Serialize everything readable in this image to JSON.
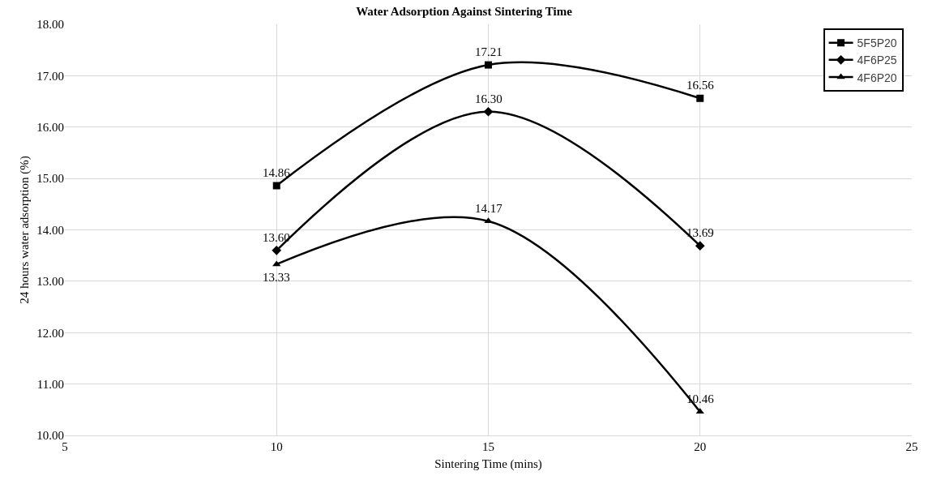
{
  "chart_data": {
    "type": "line",
    "title": "Water Adsorption Against Sintering Time",
    "xlabel": "Sintering Time (mins)",
    "ylabel": "24 hours water adsorption (%)",
    "x": [
      10,
      15,
      20
    ],
    "series": [
      {
        "name": "5F5P20",
        "color": "#000000",
        "marker": "square",
        "values": [
          14.86,
          17.21,
          16.56
        ],
        "value_labels": [
          "14.86",
          "17.21",
          "16.56"
        ]
      },
      {
        "name": "4F6P25",
        "color": "#000000",
        "marker": "diamond",
        "values": [
          13.6,
          16.3,
          13.69
        ],
        "value_labels": [
          "13.60",
          "16.30",
          "13.69"
        ]
      },
      {
        "name": "4F6P20",
        "color": "#000000",
        "marker": "triangle",
        "values": [
          13.33,
          14.17,
          10.46
        ],
        "value_labels": [
          "13.33",
          "14.17",
          "10.46"
        ]
      }
    ],
    "xlim": [
      5,
      25
    ],
    "xticks": [
      5,
      10,
      15,
      20,
      25
    ],
    "ylim": [
      10,
      18
    ],
    "yticks": [
      {
        "value": 10,
        "label": "10.00"
      },
      {
        "value": 11,
        "label": "11.00"
      },
      {
        "value": 12,
        "label": "12.00"
      },
      {
        "value": 13,
        "label": "13.00"
      },
      {
        "value": 14,
        "label": "14.00"
      },
      {
        "value": 15,
        "label": "15.00"
      },
      {
        "value": 16,
        "label": "16.00"
      },
      {
        "value": 17,
        "label": "17.00"
      },
      {
        "value": 18,
        "label": "18.00"
      }
    ],
    "grid": true,
    "legend": "top right",
    "line_style": "solid"
  }
}
